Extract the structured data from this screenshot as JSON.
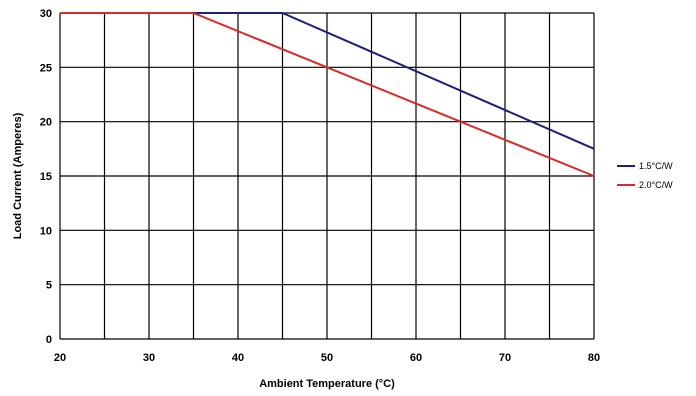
{
  "chart_data": {
    "type": "line",
    "xlabel": "Ambient Temperature (°C)",
    "ylabel": "Load Current (Amperes)",
    "xlim": [
      20,
      80
    ],
    "ylim": [
      0,
      30
    ],
    "x_ticks": [
      20,
      30,
      40,
      50,
      60,
      70,
      80
    ],
    "y_ticks": [
      0,
      5,
      10,
      15,
      20,
      25,
      30
    ],
    "grid": true,
    "legend_position": "right",
    "series": [
      {
        "name": "1.5°C/W",
        "color": "#1f1f7a",
        "x": [
          20,
          45,
          80
        ],
        "y": [
          30,
          30,
          17.5
        ]
      },
      {
        "name": "2.0°C/W",
        "color": "#d62b2b",
        "x": [
          20,
          35,
          80
        ],
        "y": [
          30,
          30,
          15
        ]
      }
    ]
  }
}
